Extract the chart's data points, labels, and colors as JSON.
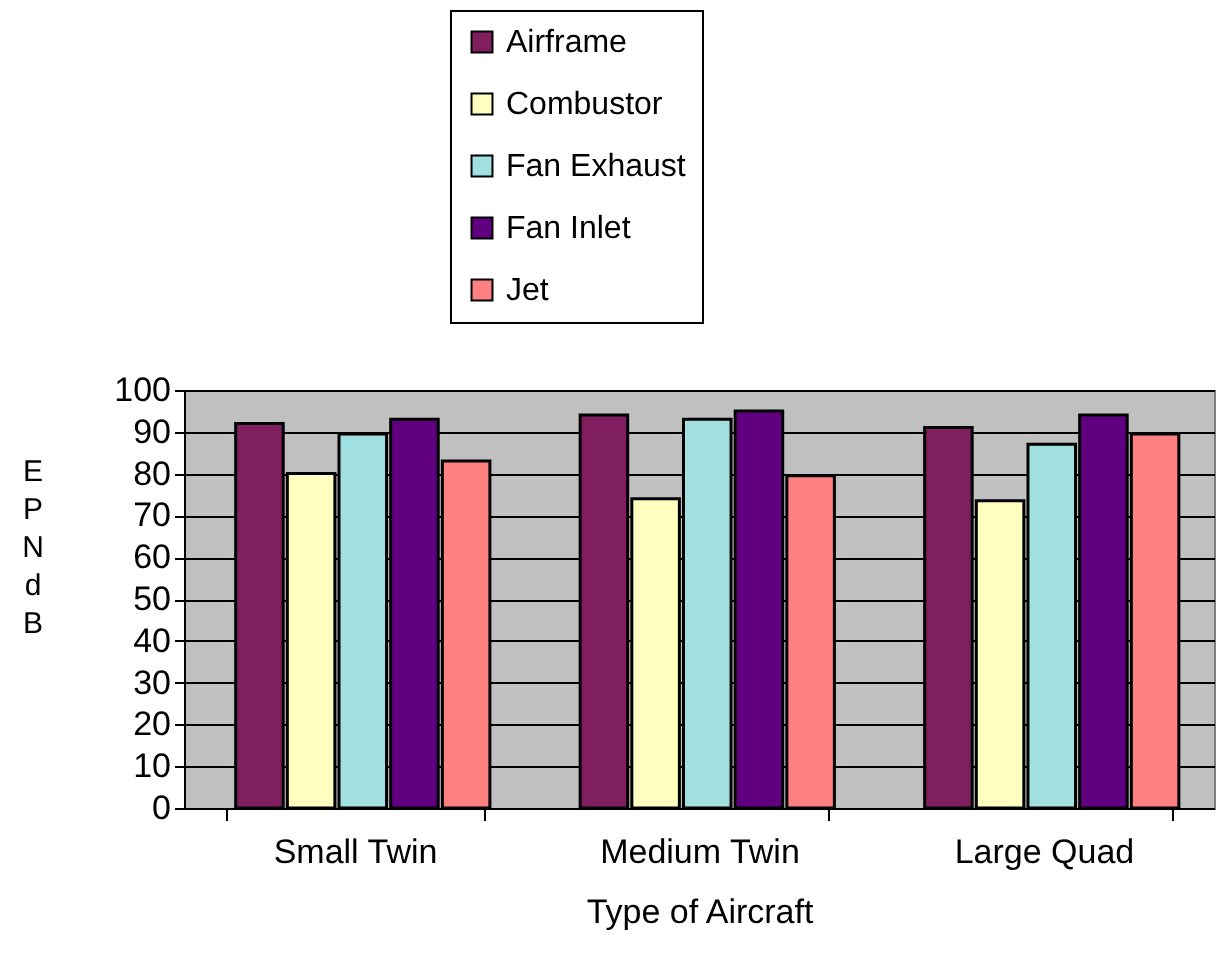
{
  "chart_data": {
    "type": "bar",
    "xlabel": "Type of Aircraft",
    "ylabel": "EPNdB",
    "categories": [
      "Small Twin",
      "Medium Twin",
      "Large Quad"
    ],
    "series": [
      {
        "name": "Airframe",
        "color": "#7f1f5f",
        "values": [
          92,
          94,
          91
        ]
      },
      {
        "name": "Combustor",
        "color": "#ffffc0",
        "values": [
          80,
          74,
          73.5
        ]
      },
      {
        "name": "Fan Exhaust",
        "color": "#a0e0e0",
        "values": [
          89.5,
          93,
          87
        ]
      },
      {
        "name": "Fan Inlet",
        "color": "#600080",
        "values": [
          93,
          95,
          94
        ]
      },
      {
        "name": "Jet",
        "color": "#ff8080",
        "values": [
          83,
          79.5,
          89.5
        ]
      }
    ],
    "ylim": [
      0,
      100
    ],
    "yticks": [
      0,
      10,
      20,
      30,
      40,
      50,
      60,
      70,
      80,
      90,
      100
    ],
    "grid": "y",
    "legend": "top"
  }
}
